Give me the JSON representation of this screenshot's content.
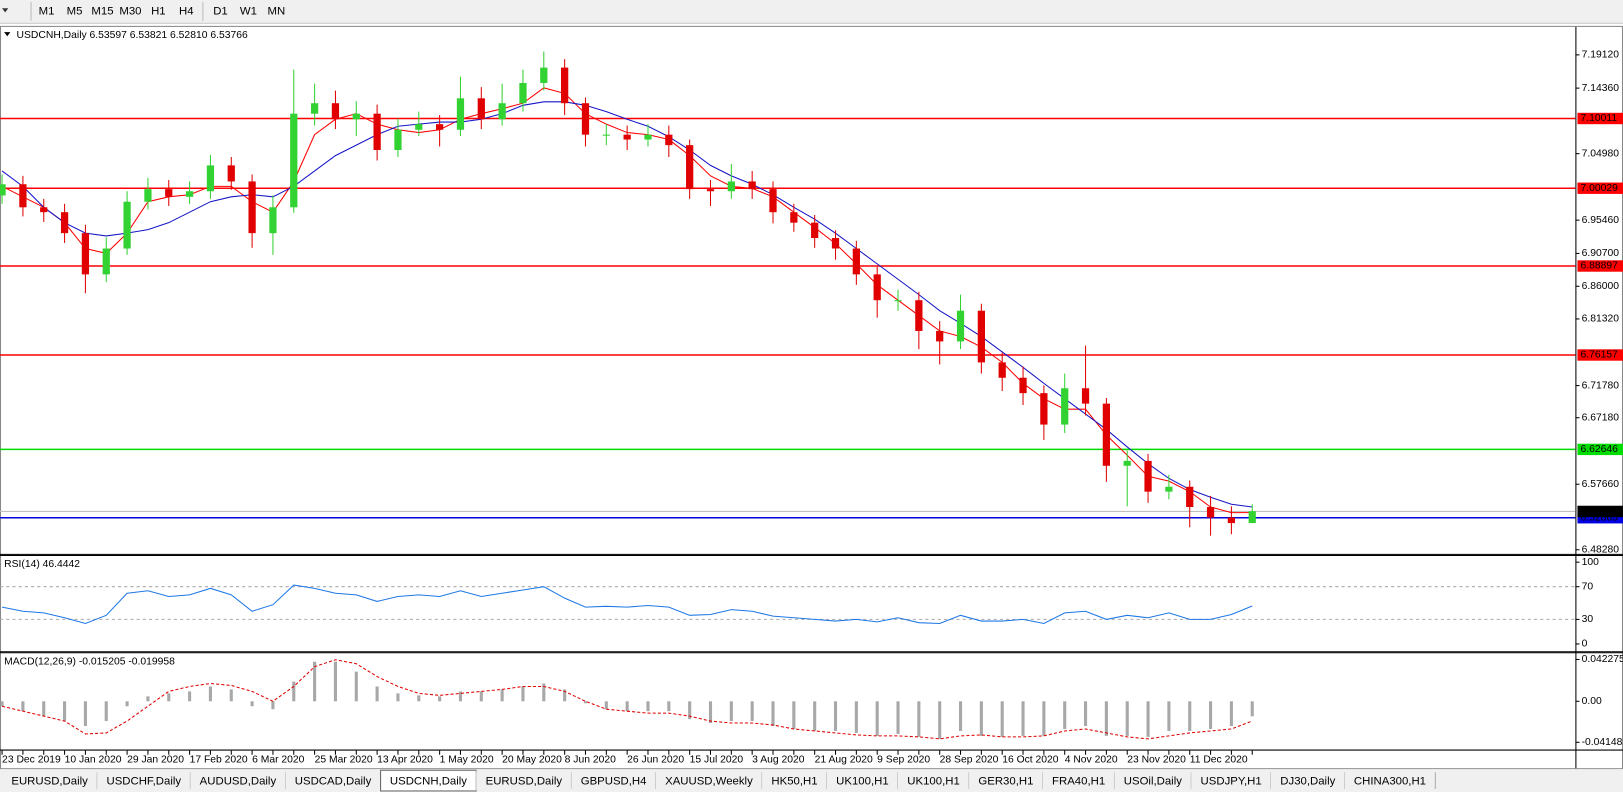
{
  "toolbar": {
    "timeframes": [
      "M1",
      "M5",
      "M15",
      "M30",
      "H1",
      "H4",
      "D1",
      "W1",
      "MN"
    ]
  },
  "tabs": {
    "items": [
      "EURUSD,Daily",
      "USDCHF,Daily",
      "AUDUSD,Daily",
      "USDCAD,Daily",
      "USDCNH,Daily",
      "EURUSD,Daily",
      "GBPUSD,H4",
      "XAUUSD,Weekly",
      "HK50,H1",
      "UK100,H1",
      "UK100,H1",
      "GER30,H1",
      "FRA40,H1",
      "USOil,Daily",
      "USDJPY,H1",
      "DJ30,Daily",
      "CHINA300,H1"
    ],
    "active": 4
  },
  "chart_data": [
    {
      "type": "candlestick",
      "title": "USDCNH,Daily  6.53597 6.53821 6.52810 6.53766",
      "categories": [
        "23 Dec 2019",
        null,
        null,
        "10 Jan 2020",
        null,
        null,
        "29 Jan 2020",
        null,
        null,
        "17 Feb 2020",
        null,
        null,
        "6 Mar 2020",
        null,
        null,
        "25 Mar 2020",
        null,
        null,
        "13 Apr 2020",
        null,
        null,
        "1 May 2020",
        null,
        null,
        "20 May 2020",
        null,
        null,
        "8 Jun 2020",
        null,
        null,
        "26 Jun 2020",
        null,
        null,
        "15 Jul 2020",
        null,
        null,
        "3 Aug 2020",
        null,
        null,
        "21 Aug 2020",
        null,
        null,
        "9 Sep 2020",
        null,
        null,
        "28 Sep 2020",
        null,
        null,
        "16 Oct 2020",
        null,
        null,
        "4 Nov 2020",
        null,
        null,
        "23 Nov 2020",
        null,
        null,
        "11 Dec 2020",
        null,
        null,
        null
      ],
      "open": [
        6.99,
        7.006,
        6.973,
        6.966,
        6.936,
        6.877,
        6.914,
        6.981,
        6.999,
        6.988,
        6.996,
        7.033,
        7.01,
        6.936,
        6.973,
        7.107,
        7.122,
        7.099,
        7.107,
        7.055,
        7.084,
        7.092,
        7.084,
        7.129,
        7.099,
        7.122,
        7.151,
        7.173,
        7.122,
        7.077,
        7.077,
        7.07,
        7.077,
        7.062,
        6.999,
        6.996,
        7.01,
        6.999,
        6.966,
        6.951,
        6.929,
        6.914,
        6.877,
        6.84,
        6.84,
        6.796,
        6.781,
        6.825,
        6.751,
        6.729,
        6.707,
        6.662,
        6.714,
        6.692,
        6.603,
        6.61,
        6.566,
        6.573,
        6.544,
        6.529,
        6.521
      ],
      "high": [
        7.02,
        7.018,
        6.985,
        6.978,
        6.948,
        6.93,
        6.996,
        7.015,
        7.012,
        7.01,
        7.048,
        7.045,
        7.02,
        6.99,
        7.17,
        7.15,
        7.14,
        7.125,
        7.12,
        7.1,
        7.11,
        7.105,
        7.16,
        7.145,
        7.15,
        7.17,
        7.196,
        7.185,
        7.13,
        7.092,
        7.09,
        7.092,
        7.09,
        7.07,
        7.012,
        7.035,
        7.025,
        7.01,
        6.978,
        6.962,
        6.94,
        6.925,
        6.888,
        6.855,
        6.852,
        6.81,
        6.848,
        6.835,
        6.765,
        6.745,
        6.718,
        6.735,
        6.775,
        6.7,
        6.625,
        6.62,
        6.59,
        6.582,
        6.56,
        6.545,
        6.548
      ],
      "low": [
        6.978,
        6.96,
        6.952,
        6.922,
        6.85,
        6.866,
        6.905,
        6.97,
        6.975,
        6.978,
        6.985,
        6.998,
        6.915,
        6.905,
        6.965,
        7.09,
        7.085,
        7.075,
        7.04,
        7.045,
        7.075,
        7.06,
        7.075,
        7.085,
        7.09,
        7.11,
        7.14,
        7.105,
        7.06,
        7.062,
        7.055,
        7.06,
        7.045,
        6.985,
        6.975,
        6.985,
        6.985,
        6.95,
        6.938,
        6.915,
        6.898,
        6.862,
        6.815,
        6.825,
        6.77,
        6.748,
        6.77,
        6.735,
        6.71,
        6.69,
        6.64,
        6.65,
        6.675,
        6.58,
        6.545,
        6.55,
        6.555,
        6.515,
        6.503,
        6.505,
        6.528
      ],
      "close": [
        7.006,
        6.973,
        6.966,
        6.936,
        6.877,
        6.914,
        6.981,
        6.999,
        6.988,
        6.996,
        7.033,
        7.01,
        6.936,
        6.973,
        7.107,
        7.122,
        7.099,
        7.107,
        7.055,
        7.084,
        7.092,
        7.084,
        7.129,
        7.099,
        7.122,
        7.151,
        7.173,
        7.122,
        7.077,
        7.077,
        7.07,
        7.077,
        7.062,
        6.999,
        6.996,
        7.01,
        6.999,
        6.966,
        6.951,
        6.929,
        6.914,
        6.877,
        6.84,
        6.84,
        6.796,
        6.781,
        6.825,
        6.751,
        6.729,
        6.707,
        6.662,
        6.714,
        6.692,
        6.603,
        6.61,
        6.566,
        6.573,
        6.544,
        6.529,
        6.521,
        6.538
      ],
      "up_color": "#32d232",
      "down_color": "#e00000",
      "overlays": [
        {
          "color": "#ff0000",
          "values": [
            7.003,
            6.988,
            6.973,
            6.951,
            6.914,
            6.907,
            6.936,
            6.981,
            6.988,
            6.991,
            7.003,
            7.003,
            6.981,
            6.966,
            7.01,
            7.077,
            7.099,
            7.107,
            7.092,
            7.084,
            7.08,
            7.084,
            7.099,
            7.107,
            7.114,
            7.122,
            7.144,
            7.136,
            7.107,
            7.092,
            7.08,
            7.077,
            7.07,
            7.047,
            7.018,
            7.003,
            7.0,
            6.988,
            6.966,
            6.944,
            6.921,
            6.892,
            6.862,
            6.84,
            6.818,
            6.796,
            6.788,
            6.773,
            6.751,
            6.721,
            6.699,
            6.684,
            6.684,
            6.647,
            6.618,
            6.588,
            6.581,
            6.566,
            6.544,
            6.536,
            6.536
          ]
        },
        {
          "color": "#1515c8",
          "values": [
            7.025,
            7.003,
            6.973,
            6.951,
            6.936,
            6.932,
            6.936,
            6.941,
            6.951,
            6.966,
            6.981,
            6.988,
            6.991,
            6.988,
            7.003,
            7.025,
            7.047,
            7.062,
            7.077,
            7.089,
            7.092,
            7.095,
            7.095,
            7.099,
            7.107,
            7.119,
            7.124,
            7.124,
            7.119,
            7.11,
            7.099,
            7.089,
            7.074,
            7.055,
            7.033,
            7.018,
            7.006,
            6.991,
            6.973,
            6.956,
            6.936,
            6.914,
            6.892,
            6.87,
            6.848,
            6.825,
            6.807,
            6.788,
            6.766,
            6.744,
            6.721,
            6.699,
            6.677,
            6.655,
            6.63,
            6.606,
            6.585,
            6.569,
            6.558,
            6.548,
            6.544
          ]
        }
      ],
      "levels": [
        {
          "value": 7.10011,
          "color": "#ff0000"
        },
        {
          "value": 7.00029,
          "color": "#ff0000"
        },
        {
          "value": 6.88897,
          "color": "#ff0000"
        },
        {
          "value": 6.76157,
          "color": "#ff0000"
        },
        {
          "value": 6.62646,
          "color": "#00dd00"
        },
        {
          "value": 6.52865,
          "color": "#0000e0"
        }
      ],
      "last_price": 6.53766,
      "ylim": [
        6.4769,
        7.2312
      ],
      "yticks": [
        {
          "value": 7.1912,
          "label": "7.19120"
        },
        {
          "value": 7.1436,
          "label": "7.14360"
        },
        {
          "value": 7.0498,
          "label": "7.04980"
        },
        {
          "value": 6.9546,
          "label": "6.95460"
        },
        {
          "value": 6.907,
          "label": "6.90700"
        },
        {
          "value": 6.86,
          "label": "6.86000"
        },
        {
          "value": 6.8132,
          "label": "6.81320"
        },
        {
          "value": 6.7178,
          "label": "6.71780"
        },
        {
          "value": 6.6718,
          "label": "6.67180"
        },
        {
          "value": 6.5766,
          "label": "6.57660"
        },
        {
          "value": 6.4828,
          "label": "6.48280"
        }
      ]
    },
    {
      "type": "line",
      "title": "RSI(14) 46.4442",
      "color": "#1e78e6",
      "values": [
        45,
        40,
        38,
        32,
        25,
        35,
        62,
        65,
        58,
        60,
        68,
        60,
        40,
        48,
        72,
        68,
        62,
        60,
        52,
        58,
        60,
        58,
        65,
        58,
        62,
        66,
        70,
        56,
        45,
        46,
        45,
        47,
        45,
        35,
        36,
        42,
        40,
        34,
        32,
        30,
        28,
        30,
        27,
        32,
        26,
        25,
        35,
        28,
        28,
        30,
        25,
        38,
        40,
        30,
        35,
        32,
        38,
        30,
        30,
        36,
        46.4442
      ],
      "levels": [
        70,
        30
      ],
      "ylim": [
        -7.6,
        107.6
      ],
      "yticks": [
        100,
        70,
        30,
        0
      ]
    },
    {
      "type": "macd",
      "title": "MACD(12,26,9) -0.015205 -0.019958",
      "color": "#a8a8a8",
      "signal_color": "#e00000",
      "values": [
        -0.005,
        -0.01,
        -0.015,
        -0.02,
        -0.025,
        -0.02,
        -0.005,
        0.005,
        0.008,
        0.01,
        0.015,
        0.012,
        -0.005,
        -0.008,
        0.02,
        0.04,
        0.04,
        0.03,
        0.015,
        0.008,
        0.006,
        0.005,
        0.01,
        0.01,
        0.012,
        0.015,
        0.018,
        0.012,
        -0.002,
        -0.008,
        -0.01,
        -0.01,
        -0.01,
        -0.018,
        -0.022,
        -0.02,
        -0.02,
        -0.025,
        -0.028,
        -0.03,
        -0.03,
        -0.032,
        -0.035,
        -0.033,
        -0.036,
        -0.038,
        -0.03,
        -0.035,
        -0.036,
        -0.035,
        -0.035,
        -0.028,
        -0.025,
        -0.035,
        -0.035,
        -0.036,
        -0.03,
        -0.03,
        -0.028,
        -0.025,
        -0.015205
      ],
      "signal": [
        -0.005,
        -0.01,
        -0.015,
        -0.02,
        -0.033,
        -0.032,
        -0.02,
        -0.005,
        0.01,
        0.015,
        0.018,
        0.016,
        0.01,
        0.0,
        0.015,
        0.035,
        0.042,
        0.038,
        0.025,
        0.015,
        0.008,
        0.006,
        0.008,
        0.01,
        0.012,
        0.015,
        0.015,
        0.01,
        0.0,
        -0.008,
        -0.01,
        -0.012,
        -0.012,
        -0.015,
        -0.02,
        -0.022,
        -0.022,
        -0.024,
        -0.028,
        -0.03,
        -0.032,
        -0.034,
        -0.035,
        -0.035,
        -0.036,
        -0.038,
        -0.035,
        -0.034,
        -0.036,
        -0.036,
        -0.035,
        -0.03,
        -0.028,
        -0.032,
        -0.036,
        -0.038,
        -0.035,
        -0.032,
        -0.03,
        -0.028,
        -0.019958
      ],
      "ylim": [
        -0.04881,
        0.04856
      ],
      "yticks": [
        0.042275,
        {
          "value": 0,
          "label": "0.00"
        },
        -0.04148
      ]
    }
  ]
}
